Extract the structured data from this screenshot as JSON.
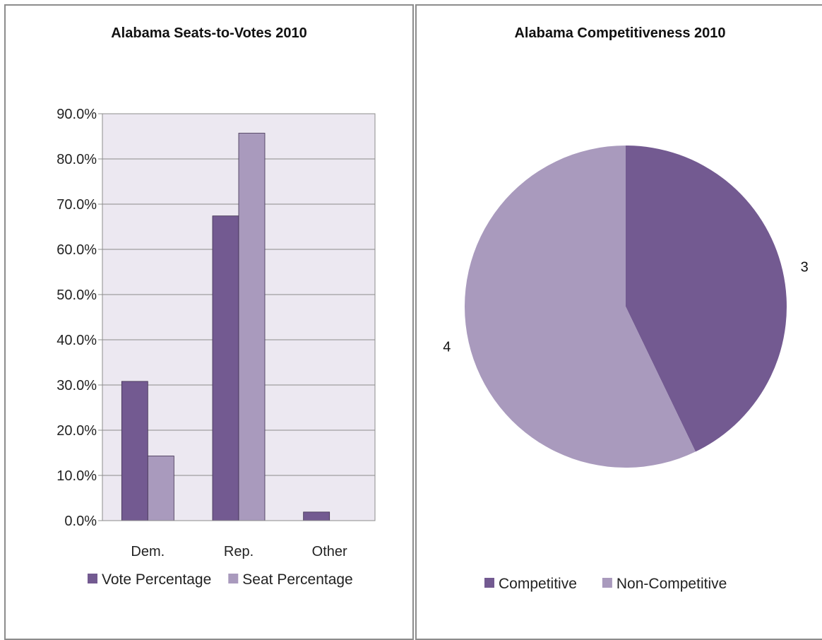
{
  "chart_data": [
    {
      "type": "bar",
      "title": "Alabama Seats-to-Votes 2010",
      "xlabel": "",
      "ylabel": "",
      "categories": [
        "Dem.",
        "Rep.",
        "Other"
      ],
      "series": [
        {
          "name": "Vote Percentage",
          "values": [
            30.8,
            67.4,
            1.9
          ],
          "color": "#735a91"
        },
        {
          "name": "Seat Percentage",
          "values": [
            14.3,
            85.7,
            0.0
          ],
          "color": "#a99abd"
        }
      ],
      "ylim": [
        0,
        90
      ],
      "ytick_step": 10,
      "ytick_labels": [
        "0.0%",
        "10.0%",
        "20.0%",
        "30.0%",
        "40.0%",
        "50.0%",
        "60.0%",
        "70.0%",
        "80.0%",
        "90.0%"
      ],
      "plot_background": "#ece8f1",
      "grid": true,
      "legend": "bottom"
    },
    {
      "type": "pie",
      "title": "Alabama Competitiveness 2010",
      "slices": [
        {
          "name": "Competitive",
          "value": 3,
          "label": "3",
          "color": "#735a91"
        },
        {
          "name": "Non-Competitive",
          "value": 4,
          "label": "4",
          "color": "#a99abd"
        }
      ],
      "legend": "bottom"
    }
  ]
}
